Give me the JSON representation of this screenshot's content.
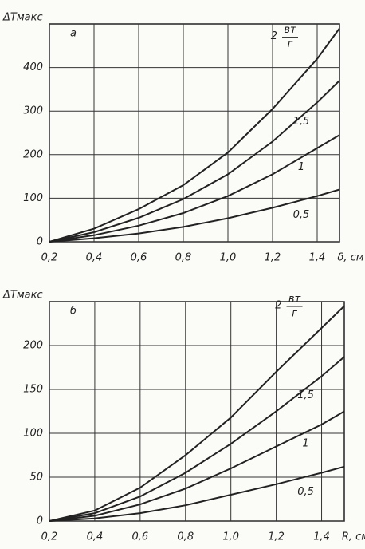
{
  "chart_data": [
    {
      "type": "line",
      "panel_label": "а",
      "y_label": "ΔTмакс",
      "x_label": "δ, см",
      "unit_numerator": "вт",
      "unit_denominator": "г",
      "x": [
        0.2,
        0.4,
        0.6,
        0.8,
        1.0,
        1.2,
        1.4,
        1.5
      ],
      "series": [
        {
          "name": "2",
          "color": "#222222",
          "values": [
            0,
            30,
            75,
            130,
            205,
            305,
            420,
            490
          ]
        },
        {
          "name": "1,5",
          "color": "#222222",
          "values": [
            0,
            22,
            55,
            98,
            155,
            230,
            320,
            370
          ]
        },
        {
          "name": "1",
          "color": "#222222",
          "values": [
            0,
            15,
            37,
            66,
            105,
            155,
            215,
            245
          ]
        },
        {
          "name": "0,5",
          "color": "#222222",
          "values": [
            0,
            8,
            19,
            34,
            54,
            78,
            105,
            120
          ]
        }
      ],
      "xlim": [
        0.2,
        1.5
      ],
      "ylim": [
        0,
        500
      ],
      "xticks": [
        {
          "value": 0.2,
          "label": "0,2"
        },
        {
          "value": 0.4,
          "label": "0,4"
        },
        {
          "value": 0.6,
          "label": "0,6"
        },
        {
          "value": 0.8,
          "label": "0,8"
        },
        {
          "value": 1.0,
          "label": "1,0"
        },
        {
          "value": 1.2,
          "label": "1,2"
        },
        {
          "value": 1.4,
          "label": "1,4"
        }
      ],
      "yticks": [
        0,
        100,
        200,
        300,
        400
      ],
      "grid": true
    },
    {
      "type": "line",
      "panel_label": "б",
      "y_label": "ΔTмакс",
      "x_label": "R, см",
      "unit_numerator": "вт",
      "unit_denominator": "г",
      "x": [
        0.2,
        0.4,
        0.6,
        0.8,
        1.0,
        1.2,
        1.4,
        1.5
      ],
      "series": [
        {
          "name": "2",
          "color": "#222222",
          "values": [
            0,
            12,
            38,
            75,
            118,
            170,
            220,
            245
          ]
        },
        {
          "name": "1,5",
          "color": "#222222",
          "values": [
            0,
            9,
            28,
            55,
            88,
            125,
            165,
            187
          ]
        },
        {
          "name": "1",
          "color": "#222222",
          "values": [
            0,
            6,
            19,
            37,
            60,
            85,
            110,
            125
          ]
        },
        {
          "name": "0,5",
          "color": "#222222",
          "values": [
            0,
            3,
            9,
            18,
            30,
            42,
            55,
            62
          ]
        }
      ],
      "xlim": [
        0.2,
        1.5
      ],
      "ylim": [
        0,
        250
      ],
      "xticks": [
        {
          "value": 0.2,
          "label": "0,2"
        },
        {
          "value": 0.4,
          "label": "0,4"
        },
        {
          "value": 0.6,
          "label": "0,6"
        },
        {
          "value": 0.8,
          "label": "0,8"
        },
        {
          "value": 1.0,
          "label": "1,0"
        },
        {
          "value": 1.2,
          "label": "1,2"
        },
        {
          "value": 1.4,
          "label": "1,4"
        }
      ],
      "yticks": [
        0,
        50,
        100,
        150,
        200
      ],
      "grid": true
    }
  ]
}
